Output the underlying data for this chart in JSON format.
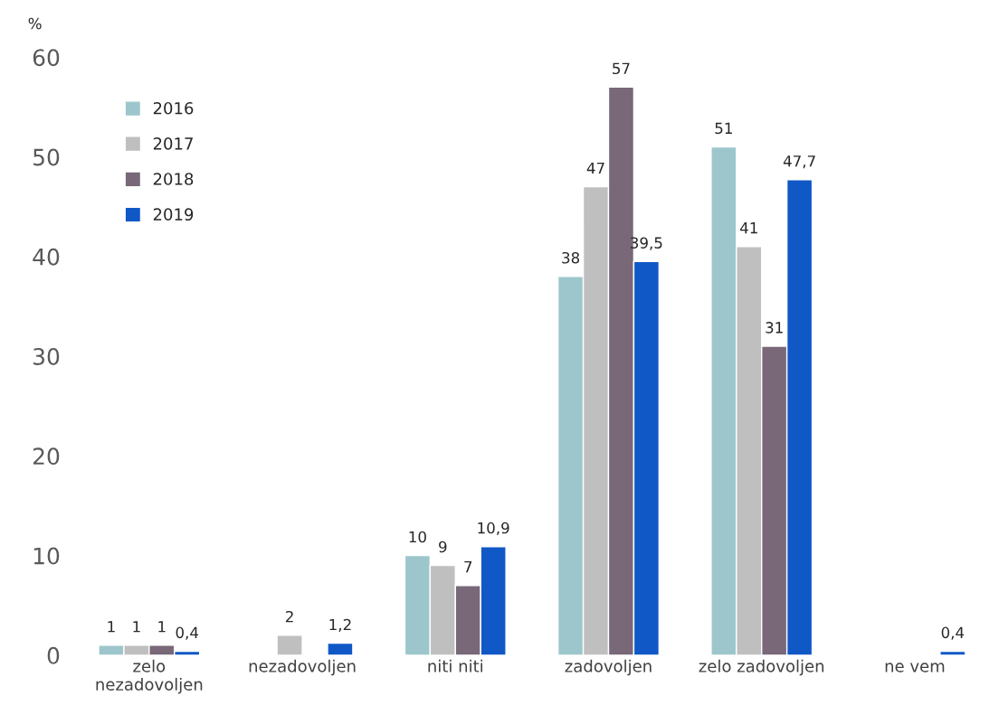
{
  "chart_data": {
    "type": "bar",
    "ylabel": "%",
    "categories": [
      "zelo\nnezadovoljen",
      "nezadovoljen",
      "niti niti",
      "zadovoljen",
      "zelo zadovoljen",
      "ne vem"
    ],
    "series": [
      {
        "name": "2016",
        "color": "#9dc6cc",
        "values": [
          1,
          null,
          10,
          38,
          51,
          null
        ],
        "value_labels": [
          "1",
          null,
          "10",
          "38",
          "51",
          null
        ]
      },
      {
        "name": "2017",
        "color": "#bfbfbf",
        "values": [
          1,
          2,
          9,
          47,
          41,
          null
        ],
        "value_labels": [
          "1",
          "2",
          "9",
          "47",
          "41",
          null
        ]
      },
      {
        "name": "2018",
        "color": "#786878",
        "values": [
          1,
          null,
          7,
          57,
          31,
          null
        ],
        "value_labels": [
          "1",
          null,
          "7",
          "57",
          "31",
          null
        ]
      },
      {
        "name": "2019",
        "color": "#1058c6",
        "values": [
          0.4,
          1.2,
          10.9,
          39.5,
          47.7,
          0.4
        ],
        "value_labels": [
          "0,4",
          "1,2",
          "10,9",
          "39,5",
          "47,7",
          "0,4"
        ]
      }
    ],
    "ylim": [
      0,
      60
    ],
    "yticks": [
      0,
      10,
      20,
      30,
      40,
      50,
      60
    ],
    "grid": false,
    "legend": "top left"
  }
}
